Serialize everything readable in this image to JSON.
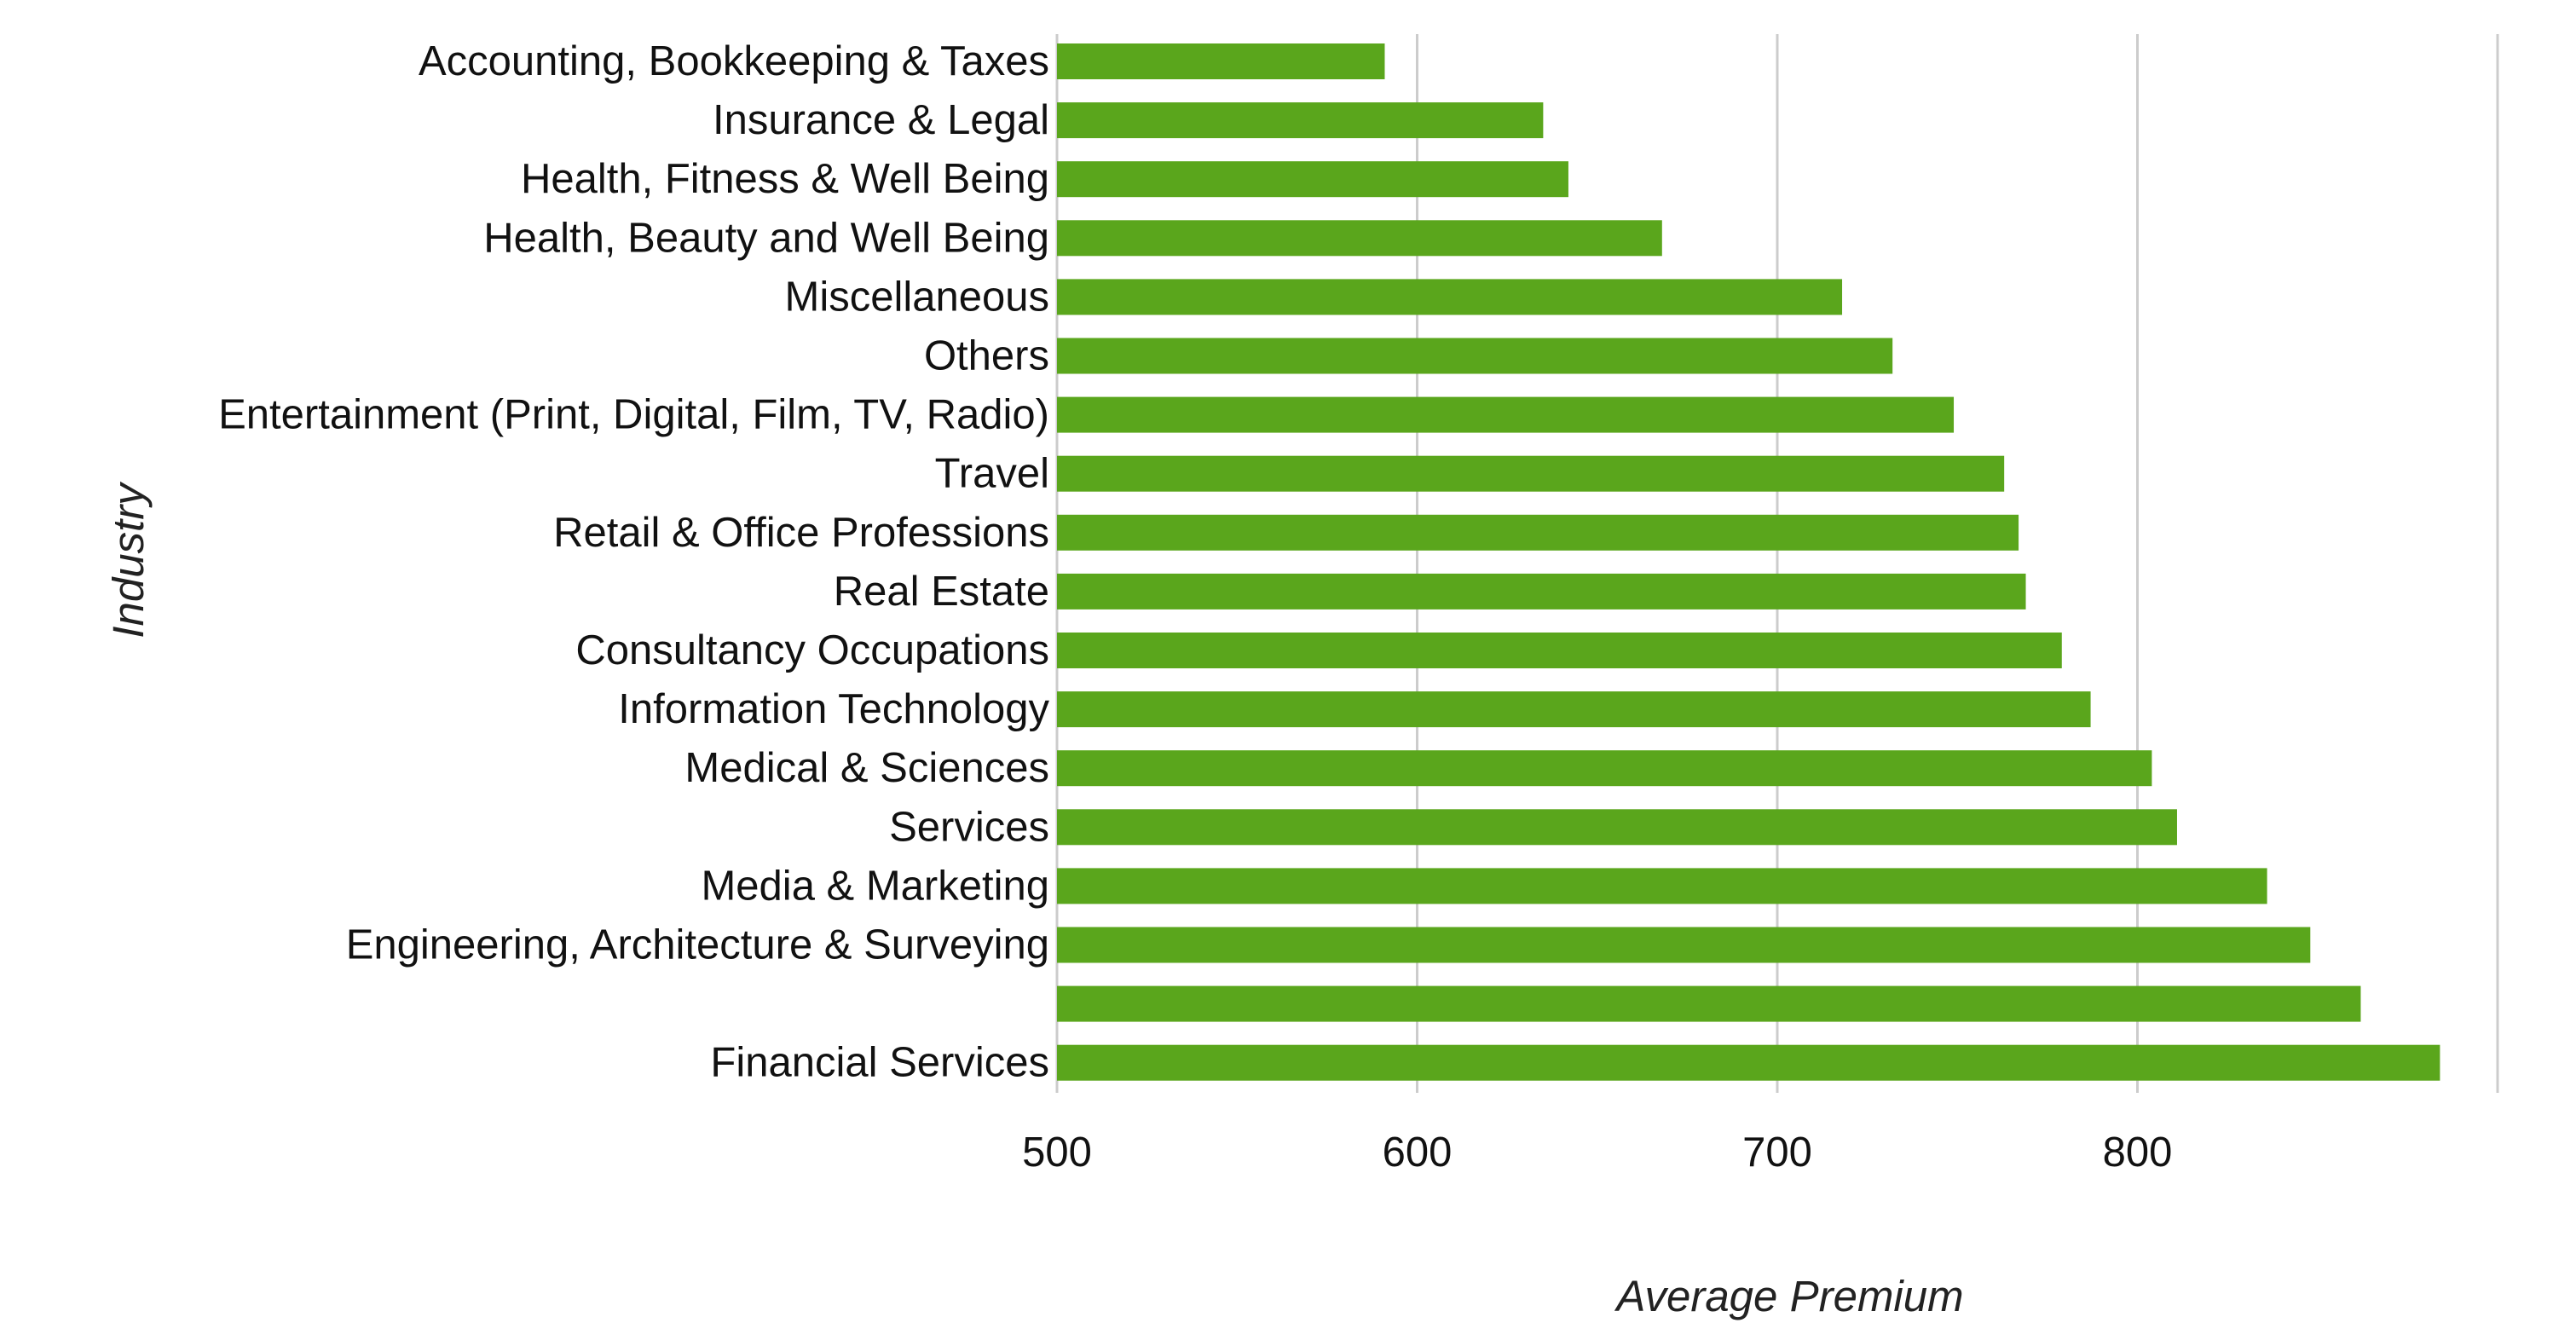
{
  "chart_data": {
    "type": "bar",
    "orientation": "horizontal",
    "xlabel": "Average Premium",
    "ylabel": "Industry",
    "xlim": [
      500,
      900
    ],
    "xticks": [
      500,
      600,
      700,
      800
    ],
    "grid": true,
    "bar_color": "#5aa61c",
    "grid_color": "#cccccc",
    "categories": [
      "Accounting, Bookkeeping & Taxes",
      "Insurance & Legal",
      "Health, Fitness & Well Being",
      "Health, Beauty and Well Being",
      "Miscellaneous",
      "Others",
      "Entertainment (Print, Digital, Film, TV, Radio)",
      "Travel",
      "Retail & Office Professions",
      "Real Estate",
      "Consultancy Occupations",
      "Information Technology",
      "Medical & Sciences",
      "Services",
      "Media & Marketing",
      "Engineering, Architecture & Surveying",
      "",
      "Financial Services"
    ],
    "values": [
      591,
      635,
      642,
      668,
      718,
      732,
      749,
      763,
      767,
      769,
      779,
      787,
      804,
      811,
      836,
      848,
      862,
      884
    ]
  }
}
